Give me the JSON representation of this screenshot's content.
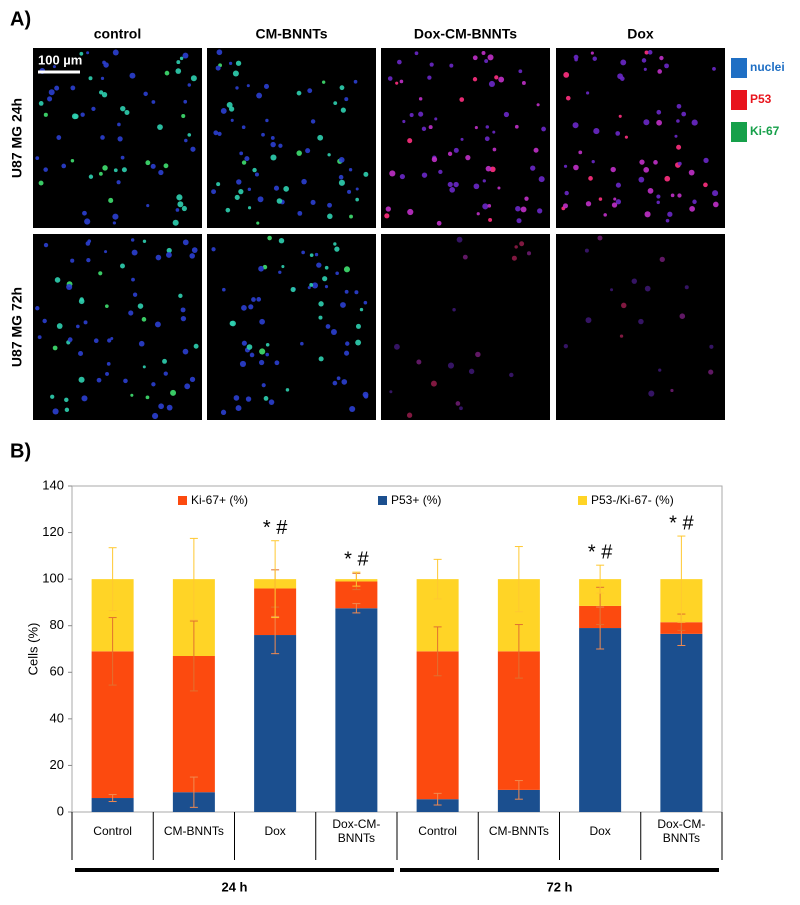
{
  "panel_a": {
    "label": "A)",
    "columns": [
      "control",
      "CM-BNNTs",
      "Dox-CM-BNNTs",
      "Dox"
    ],
    "rows": [
      "U87 MG  24h",
      "U87 MG  72h"
    ],
    "scale_bar": "100 µm",
    "legend": [
      {
        "name": "nuclei",
        "color": "#1f6fc4"
      },
      {
        "name": "P53",
        "color": "#e8141c"
      },
      {
        "name": "Ki-67",
        "color": "#16a04a"
      }
    ]
  },
  "chart_data": {
    "type": "stacked_bar",
    "label": "B)",
    "ylabel": "Cells  (%)",
    "categories": [
      "Control",
      "CM-BNNTs",
      "Dox",
      "Dox-CM-\nBNNTs",
      "Control",
      "CM-BNNTs",
      "Dox",
      "Dox-CM-\nBNNTs"
    ],
    "groups": [
      "24 h",
      "72 h"
    ],
    "significance": [
      null,
      null,
      "* #",
      "* #",
      null,
      null,
      "* #",
      "* #"
    ],
    "series": [
      {
        "name": "P53+ (%)",
        "color": "#1b4f8f",
        "values": [
          6,
          8.5,
          76,
          87.5,
          5.5,
          9.5,
          79,
          76.5
        ],
        "errors": [
          1.5,
          6.5,
          8,
          2,
          2.5,
          4,
          9,
          5
        ]
      },
      {
        "name": "Ki-67+ (%)",
        "color": "#fc4a0f",
        "values": [
          63,
          58.5,
          20,
          11.5,
          63.5,
          59.5,
          9.5,
          5
        ],
        "errors": [
          14.5,
          15,
          8,
          3.5,
          10.5,
          11.5,
          8,
          3.5
        ]
      },
      {
        "name": "P53-/Ki-67- (%)",
        "color": "#ffd426",
        "values": [
          31,
          33,
          4,
          1,
          31,
          31,
          11.5,
          18.5
        ],
        "errors": [
          13.5,
          17.5,
          16.5,
          3,
          8.5,
          14,
          6,
          18.5
        ]
      }
    ],
    "legend_order": [
      1,
      0,
      2
    ],
    "ylim": [
      0,
      140
    ],
    "yticks": [
      0,
      20,
      40,
      60,
      80,
      100,
      120,
      140
    ]
  }
}
